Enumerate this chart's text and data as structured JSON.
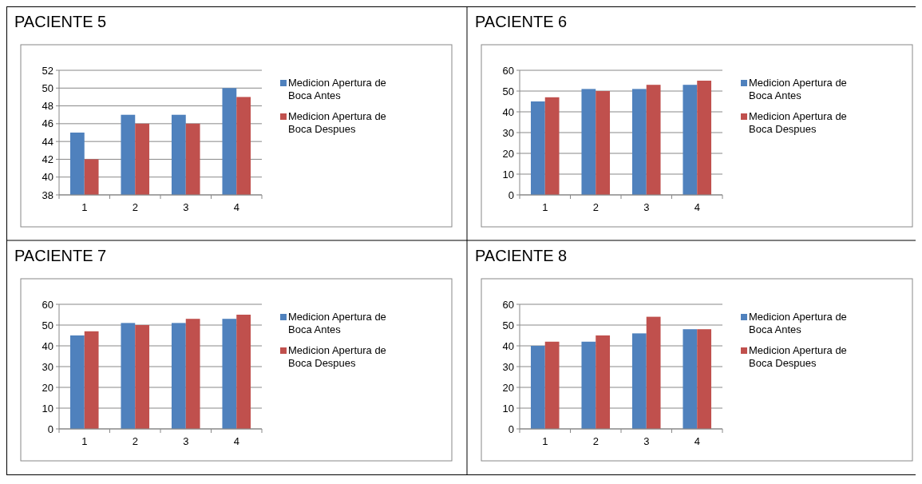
{
  "chart_data": [
    {
      "type": "bar",
      "title": "PACIENTE 5",
      "categories": [
        "1",
        "2",
        "3",
        "4"
      ],
      "series": [
        {
          "name": "Medicion Apertura de Boca Antes",
          "color": "#4f81bd",
          "values": [
            45,
            47,
            47,
            50
          ]
        },
        {
          "name": "Medicion Apertura de Boca Despues",
          "color": "#c0504d",
          "values": [
            42,
            46,
            46,
            49
          ]
        }
      ],
      "ylim": [
        38,
        52
      ],
      "yticks": [
        38,
        40,
        42,
        44,
        46,
        48,
        50,
        52
      ],
      "grid": "y",
      "legend": "right"
    },
    {
      "type": "bar",
      "title": "PACIENTE 6",
      "categories": [
        "1",
        "2",
        "3",
        "4"
      ],
      "series": [
        {
          "name": "Medicion Apertura de Boca Antes",
          "color": "#4f81bd",
          "values": [
            45,
            51,
            51,
            53
          ]
        },
        {
          "name": "Medicion Apertura de Boca Despues",
          "color": "#c0504d",
          "values": [
            47,
            50,
            53,
            55
          ]
        }
      ],
      "ylim": [
        0,
        60
      ],
      "yticks": [
        0,
        10,
        20,
        30,
        40,
        50,
        60
      ],
      "grid": "y",
      "legend": "right"
    },
    {
      "type": "bar",
      "title": "PACIENTE 7",
      "categories": [
        "1",
        "2",
        "3",
        "4"
      ],
      "series": [
        {
          "name": "Medicion Apertura de Boca Antes",
          "color": "#4f81bd",
          "values": [
            45,
            51,
            51,
            53
          ]
        },
        {
          "name": "Medicion Apertura de Boca Despues",
          "color": "#c0504d",
          "values": [
            47,
            50,
            53,
            55
          ]
        }
      ],
      "ylim": [
        0,
        60
      ],
      "yticks": [
        0,
        10,
        20,
        30,
        40,
        50,
        60
      ],
      "grid": "y",
      "legend": "right"
    },
    {
      "type": "bar",
      "title": "PACIENTE 8",
      "categories": [
        "1",
        "2",
        "3",
        "4"
      ],
      "series": [
        {
          "name": "Medicion Apertura de Boca Antes",
          "color": "#4f81bd",
          "values": [
            40,
            42,
            46,
            48
          ]
        },
        {
          "name": "Medicion Apertura de Boca Despues",
          "color": "#c0504d",
          "values": [
            42,
            45,
            54,
            48
          ]
        }
      ],
      "ylim": [
        0,
        60
      ],
      "yticks": [
        0,
        10,
        20,
        30,
        40,
        50,
        60
      ],
      "grid": "y",
      "legend": "right"
    }
  ]
}
